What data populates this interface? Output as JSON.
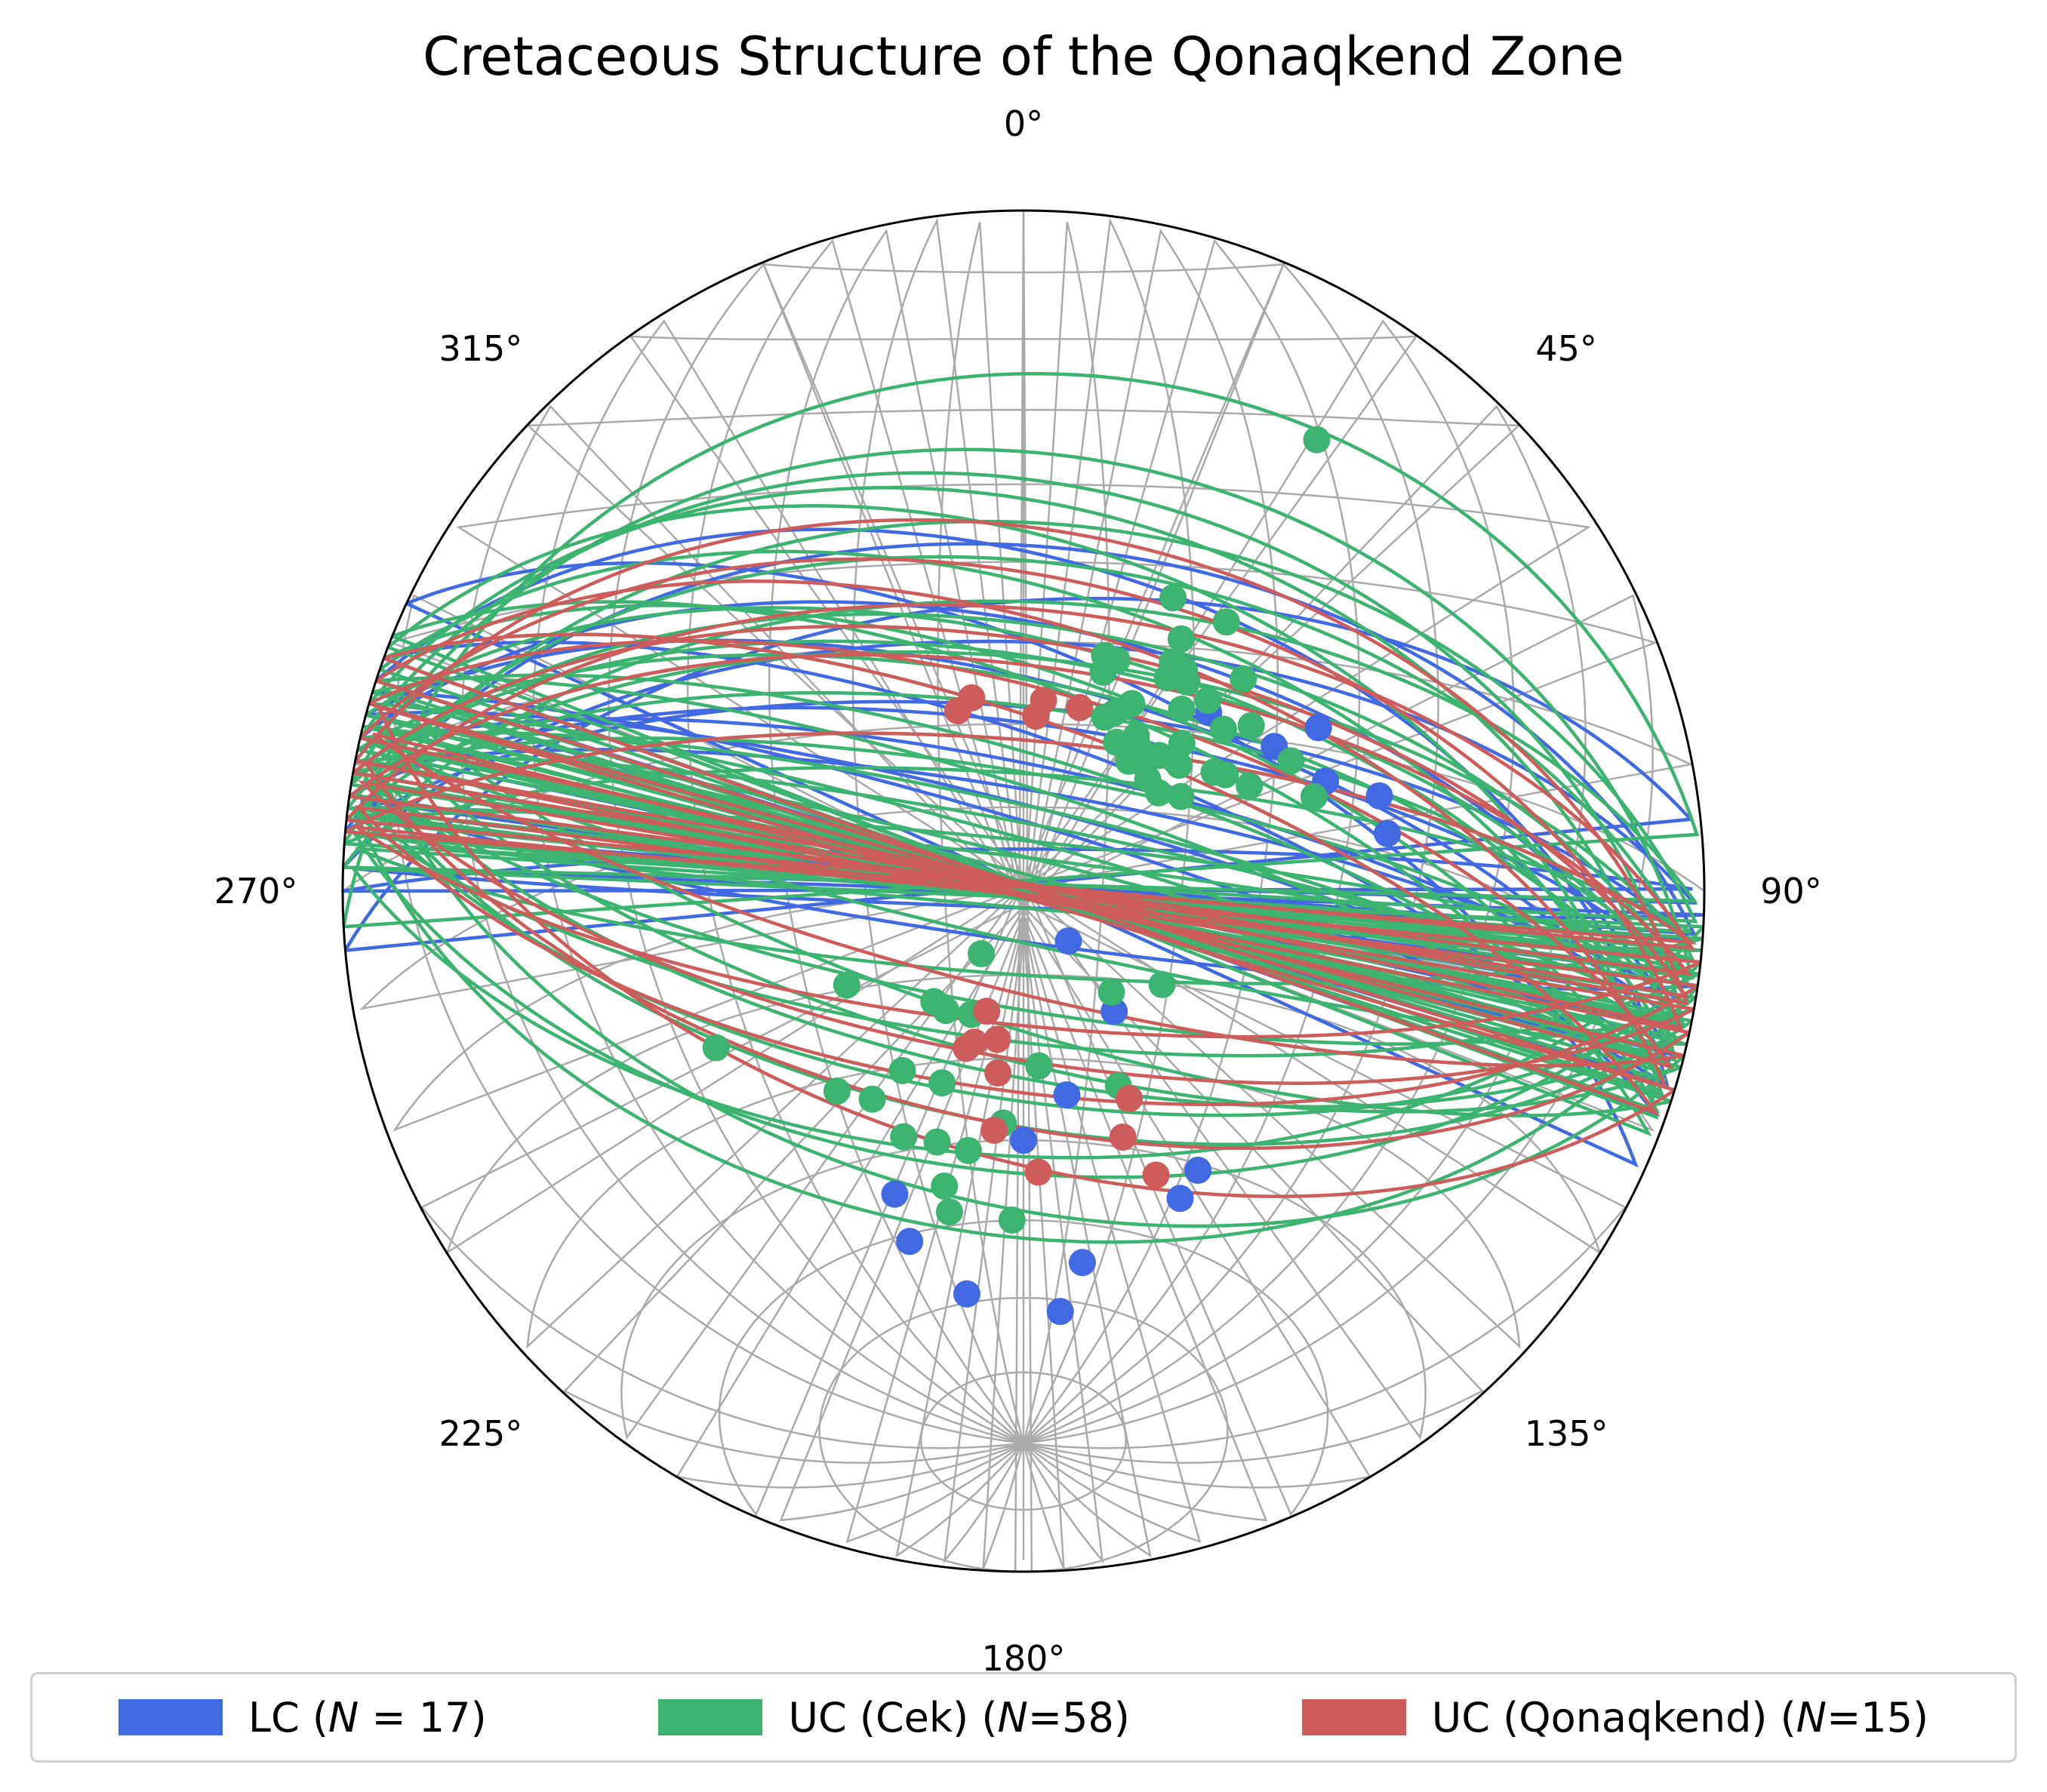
{
  "chart_data": {
    "type": "scatter",
    "projection": "equal-area stereonet (lower hemisphere)",
    "title": "Cretaceous Structure of the Qonaqkend Zone",
    "azimuth_labels": [
      "0°",
      "45°",
      "90°",
      "135°",
      "180°",
      "225°",
      "270°",
      "315°"
    ],
    "azimuth_values": [
      0,
      45,
      90,
      135,
      180,
      225,
      270,
      315
    ],
    "grid": true,
    "legend_position": "bottom",
    "series": [
      {
        "name_prefix": "LC (",
        "n_symbol": "N",
        "name_suffix": " = 17)",
        "color": "#4169E1",
        "great_circles": [
          {
            "strike": 278,
            "dip": 70
          },
          {
            "strike": 282,
            "dip": 75
          },
          {
            "strike": 285,
            "dip": 80
          },
          {
            "strike": 275,
            "dip": 68
          },
          {
            "strike": 290,
            "dip": 72
          },
          {
            "strike": 272,
            "dip": 60
          },
          {
            "strike": 285,
            "dip": 65
          },
          {
            "strike": 280,
            "dip": 78
          },
          {
            "strike": 287,
            "dip": 82
          },
          {
            "strike": 283,
            "dip": 58
          },
          {
            "strike": 275,
            "dip": 48
          },
          {
            "strike": 295,
            "dip": 62
          },
          {
            "strike": 265,
            "dip": 55
          },
          {
            "strike": 288,
            "dip": 50
          },
          {
            "strike": 92,
            "dip": 88
          },
          {
            "strike": 98,
            "dip": 84
          },
          {
            "strike": 270,
            "dip": 85
          }
        ],
        "points": [
          {
            "trend": 153,
            "plunge": 48
          },
          {
            "trend": 148,
            "plunge": 50
          },
          {
            "trend": 168,
            "plunge": 65
          },
          {
            "trend": 143,
            "plunge": 72
          },
          {
            "trend": 171,
            "plunge": 44
          },
          {
            "trend": 175,
            "plunge": 38
          },
          {
            "trend": 203,
            "plunge": 50
          },
          {
            "trend": 138,
            "plunge": 82
          },
          {
            "trend": 188,
            "plunge": 40
          },
          {
            "trend": 198,
            "plunge": 45
          },
          {
            "trend": 46,
            "plunge": 59
          },
          {
            "trend": 60,
            "plunge": 55
          },
          {
            "trend": 61,
            "plunge": 49
          },
          {
            "trend": 70,
            "plunge": 51
          },
          {
            "trend": 75,
            "plunge": 45
          },
          {
            "trend": 81,
            "plunge": 45
          },
          {
            "trend": 180,
            "plunge": 60
          }
        ]
      },
      {
        "name_prefix": "UC (Cek) (",
        "n_symbol": "N",
        "name_suffix": "=58)",
        "color": "#3CB371",
        "great_circles": [
          {
            "strike": 275,
            "dip": 72
          },
          {
            "strike": 280,
            "dip": 76
          },
          {
            "strike": 283,
            "dip": 80
          },
          {
            "strike": 286,
            "dip": 84
          },
          {
            "strike": 278,
            "dip": 68
          },
          {
            "strike": 282,
            "dip": 65
          },
          {
            "strike": 290,
            "dip": 70
          },
          {
            "strike": 287,
            "dip": 74
          },
          {
            "strike": 276,
            "dip": 62
          },
          {
            "strike": 285,
            "dip": 60
          },
          {
            "strike": 279,
            "dip": 58
          },
          {
            "strike": 292,
            "dip": 66
          },
          {
            "strike": 272,
            "dip": 55
          },
          {
            "strike": 288,
            "dip": 78
          },
          {
            "strike": 281,
            "dip": 82
          },
          {
            "strike": 284,
            "dip": 86
          },
          {
            "strike": 277,
            "dip": 50
          },
          {
            "strike": 289,
            "dip": 54
          },
          {
            "strike": 274,
            "dip": 45
          },
          {
            "strike": 291,
            "dip": 48
          },
          {
            "strike": 283,
            "dip": 40
          },
          {
            "strike": 286,
            "dip": 43
          },
          {
            "strike": 279,
            "dip": 36
          },
          {
            "strike": 94,
            "dip": 80
          },
          {
            "strike": 100,
            "dip": 76
          },
          {
            "strike": 97,
            "dip": 72
          },
          {
            "strike": 103,
            "dip": 84
          },
          {
            "strike": 95,
            "dip": 88
          },
          {
            "strike": 105,
            "dip": 70
          },
          {
            "strike": 99,
            "dip": 65
          },
          {
            "strike": 101,
            "dip": 62
          },
          {
            "strike": 93,
            "dip": 58
          },
          {
            "strike": 108,
            "dip": 74
          },
          {
            "strike": 96,
            "dip": 56
          },
          {
            "strike": 285,
            "dip": 88
          },
          {
            "strike": 277,
            "dip": 86
          },
          {
            "strike": 274,
            "dip": 76
          },
          {
            "strike": 290,
            "dip": 64
          },
          {
            "strike": 276,
            "dip": 84
          },
          {
            "strike": 280,
            "dip": 62
          },
          {
            "strike": 104,
            "dip": 52
          },
          {
            "strike": 98,
            "dip": 48
          },
          {
            "strike": 102,
            "dip": 68
          },
          {
            "strike": 267,
            "dip": 25
          }
        ],
        "points": [
          {
            "trend": 242,
            "plunge": 66
          },
          {
            "trend": 243,
            "plunge": 48
          },
          {
            "trend": 182,
            "plunge": 50
          },
          {
            "trend": 139,
            "plunge": 74
          },
          {
            "trend": 175,
            "plunge": 69
          },
          {
            "trend": 193,
            "plunge": 50
          },
          {
            "trend": 195,
            "plunge": 53
          },
          {
            "trend": 216,
            "plunge": 59
          },
          {
            "trend": 206,
            "plunge": 57
          },
          {
            "trend": 199,
            "plunge": 58
          },
          {
            "trend": 214,
            "plunge": 64
          },
          {
            "trend": 203,
            "plunge": 65
          },
          {
            "trend": 213,
            "plunge": 73
          },
          {
            "trend": 203,
            "plunge": 74
          },
          {
            "trend": 192,
            "plunge": 58
          },
          {
            "trend": 154,
            "plunge": 64
          },
          {
            "trend": 124,
            "plunge": 70
          },
          {
            "trend": 223,
            "plunge": 57
          },
          {
            "trend": 185,
            "plunge": 62
          },
          {
            "trend": 219,
            "plunge": 73
          },
          {
            "trend": 214,
            "plunge": 81
          },
          {
            "trend": 33,
            "plunge": 22
          },
          {
            "trend": 27,
            "plunge": 50
          },
          {
            "trend": 37,
            "plunge": 49
          },
          {
            "trend": 32,
            "plunge": 54
          },
          {
            "trend": 19,
            "plunge": 60
          },
          {
            "trend": 36,
            "plunge": 57
          },
          {
            "trend": 46,
            "plunge": 53
          },
          {
            "trend": 44,
            "plunge": 58
          },
          {
            "trend": 38,
            "plunge": 58
          },
          {
            "trend": 33,
            "plunge": 57
          },
          {
            "trend": 34,
            "plunge": 59
          },
          {
            "trend": 41,
            "plunge": 61
          },
          {
            "trend": 22,
            "plunge": 60
          },
          {
            "trend": 20,
            "plunge": 62
          },
          {
            "trend": 25,
            "plunge": 67
          },
          {
            "trend": 27,
            "plunge": 66
          },
          {
            "trend": 51,
            "plunge": 59
          },
          {
            "trend": 32,
            "plunge": 69
          },
          {
            "trend": 36,
            "plunge": 67
          },
          {
            "trend": 42,
            "plunge": 69
          },
          {
            "trend": 51,
            "plunge": 59
          },
          {
            "trend": 39,
            "plunge": 68
          },
          {
            "trend": 54,
            "plunge": 56
          },
          {
            "trend": 58,
            "plunge": 63
          },
          {
            "trend": 64,
            "plunge": 54
          },
          {
            "trend": 47,
            "plunge": 64
          },
          {
            "trend": 45,
            "plunge": 67
          },
          {
            "trend": 51,
            "plunge": 66
          },
          {
            "trend": 39,
            "plunge": 70
          },
          {
            "trend": 49,
            "plunge": 66
          },
          {
            "trend": 48,
            "plunge": 70
          },
          {
            "trend": 60,
            "plunge": 62
          },
          {
            "trend": 54,
            "plunge": 70
          },
          {
            "trend": 65,
            "plunge": 60
          },
          {
            "trend": 72,
            "plunge": 53
          },
          {
            "trend": 59,
            "plunge": 68
          },
          {
            "trend": 30,
            "plunge": 64
          }
        ]
      },
      {
        "name_prefix": "UC (Qonaqkend) (",
        "n_symbol": "N",
        "name_suffix": "=15)",
        "color": "#CD5C5C",
        "great_circles": [
          {
            "strike": 280,
            "dip": 60
          },
          {
            "strike": 286,
            "dip": 66
          },
          {
            "strike": 276,
            "dip": 56
          },
          {
            "strike": 290,
            "dip": 70
          },
          {
            "strike": 283,
            "dip": 52
          },
          {
            "strike": 278,
            "dip": 63
          },
          {
            "strike": 288,
            "dip": 58
          },
          {
            "strike": 96,
            "dip": 74
          },
          {
            "strike": 100,
            "dip": 70
          },
          {
            "strike": 104,
            "dip": 78
          },
          {
            "strike": 98,
            "dip": 66
          },
          {
            "strike": 102,
            "dip": 62
          },
          {
            "strike": 281,
            "dip": 46
          },
          {
            "strike": 275,
            "dip": 72
          },
          {
            "strike": 107,
            "dip": 58
          }
        ],
        "points": [
          {
            "trend": 197,
            "plunge": 75
          },
          {
            "trend": 190,
            "plunge": 72
          },
          {
            "trend": 188,
            "plunge": 68
          },
          {
            "trend": 198,
            "plunge": 71
          },
          {
            "trend": 200,
            "plunge": 70
          },
          {
            "trend": 187,
            "plunge": 61
          },
          {
            "trend": 177,
            "plunge": 56
          },
          {
            "trend": 158,
            "plunge": 58
          },
          {
            "trend": 153,
            "plunge": 62
          },
          {
            "trend": 155,
            "plunge": 52
          },
          {
            "trend": 340,
            "plunge": 67
          },
          {
            "trend": 345,
            "plunge": 66
          },
          {
            "trend": 4,
            "plunge": 69
          },
          {
            "trend": 6,
            "plunge": 67
          },
          {
            "trend": 17,
            "plunge": 67
          }
        ]
      }
    ]
  }
}
